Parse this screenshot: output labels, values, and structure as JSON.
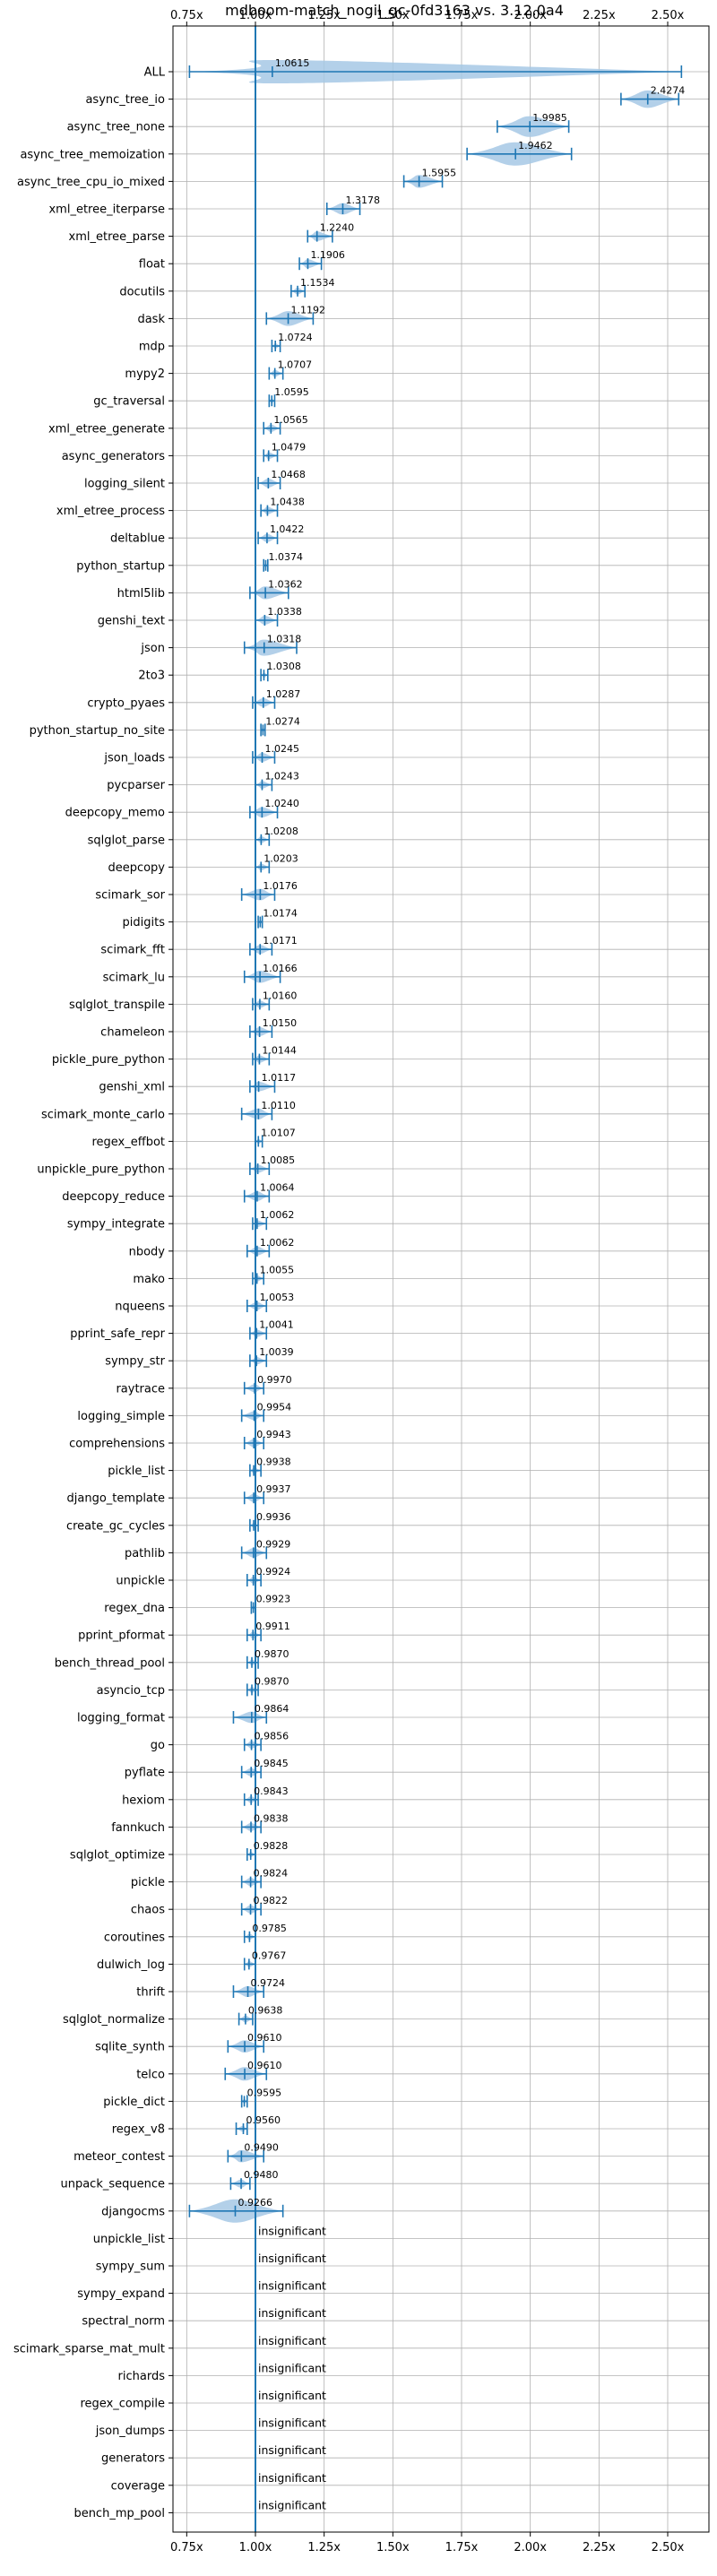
{
  "chart_data": {
    "type": "violin",
    "title": "mdboom-match_nogil_gc-0fd3163 vs. 3.12.0a4",
    "xlabel": "",
    "ylabel": "",
    "xlim": [
      0.7,
      2.65
    ],
    "xticks": [
      0.75,
      1.0,
      1.25,
      1.5,
      1.75,
      2.0,
      2.25,
      2.5
    ],
    "xtick_labels": [
      "0.75x",
      "1.00x",
      "1.25x",
      "1.50x",
      "1.75x",
      "2.00x",
      "2.25x",
      "2.50x"
    ],
    "xtick_positions": [
      "top",
      "bottom"
    ],
    "reference_line": 1.0,
    "grid": true,
    "colors": {
      "violin": "#a6c8e5",
      "line": "#1f77b4"
    },
    "benchmarks": [
      {
        "name": "ALL",
        "value": 1.0615,
        "label": "1.0615",
        "min": 0.76,
        "max": 2.55
      },
      {
        "name": "async_tree_io",
        "value": 2.4274,
        "label": "2.4274",
        "min": 2.33,
        "max": 2.54
      },
      {
        "name": "async_tree_none",
        "value": 1.9985,
        "label": "1.9985",
        "min": 1.88,
        "max": 2.14
      },
      {
        "name": "async_tree_memoization",
        "value": 1.9462,
        "label": "1.9462",
        "min": 1.77,
        "max": 2.15
      },
      {
        "name": "async_tree_cpu_io_mixed",
        "value": 1.5955,
        "label": "1.5955",
        "min": 1.54,
        "max": 1.68
      },
      {
        "name": "xml_etree_iterparse",
        "value": 1.3178,
        "label": "1.3178",
        "min": 1.26,
        "max": 1.38
      },
      {
        "name": "xml_etree_parse",
        "value": 1.224,
        "label": "1.2240",
        "min": 1.19,
        "max": 1.28
      },
      {
        "name": "float",
        "value": 1.1906,
        "label": "1.1906",
        "min": 1.16,
        "max": 1.24
      },
      {
        "name": "docutils",
        "value": 1.1534,
        "label": "1.1534",
        "min": 1.13,
        "max": 1.18
      },
      {
        "name": "dask",
        "value": 1.1192,
        "label": "1.1192",
        "min": 1.04,
        "max": 1.21
      },
      {
        "name": "mdp",
        "value": 1.0724,
        "label": "1.0724",
        "min": 1.06,
        "max": 1.09
      },
      {
        "name": "mypy2",
        "value": 1.0707,
        "label": "1.0707",
        "min": 1.05,
        "max": 1.1
      },
      {
        "name": "gc_traversal",
        "value": 1.0595,
        "label": "1.0595",
        "min": 1.05,
        "max": 1.07
      },
      {
        "name": "xml_etree_generate",
        "value": 1.0565,
        "label": "1.0565",
        "min": 1.03,
        "max": 1.09
      },
      {
        "name": "async_generators",
        "value": 1.0479,
        "label": "1.0479",
        "min": 1.03,
        "max": 1.08
      },
      {
        "name": "logging_silent",
        "value": 1.0468,
        "label": "1.0468",
        "min": 1.01,
        "max": 1.09
      },
      {
        "name": "xml_etree_process",
        "value": 1.0438,
        "label": "1.0438",
        "min": 1.02,
        "max": 1.08
      },
      {
        "name": "deltablue",
        "value": 1.0422,
        "label": "1.0422",
        "min": 1.01,
        "max": 1.08
      },
      {
        "name": "python_startup",
        "value": 1.0374,
        "label": "1.0374",
        "min": 1.03,
        "max": 1.045
      },
      {
        "name": "html5lib",
        "value": 1.0362,
        "label": "1.0362",
        "min": 0.98,
        "max": 1.12
      },
      {
        "name": "genshi_text",
        "value": 1.0338,
        "label": "1.0338",
        "min": 1.0,
        "max": 1.08
      },
      {
        "name": "json",
        "value": 1.0318,
        "label": "1.0318",
        "min": 0.96,
        "max": 1.15
      },
      {
        "name": "2to3",
        "value": 1.0308,
        "label": "1.0308",
        "min": 1.02,
        "max": 1.045
      },
      {
        "name": "crypto_pyaes",
        "value": 1.0287,
        "label": "1.0287",
        "min": 0.99,
        "max": 1.07
      },
      {
        "name": "python_startup_no_site",
        "value": 1.0274,
        "label": "1.0274",
        "min": 1.02,
        "max": 1.035
      },
      {
        "name": "json_loads",
        "value": 1.0245,
        "label": "1.0245",
        "min": 0.99,
        "max": 1.07
      },
      {
        "name": "pycparser",
        "value": 1.0243,
        "label": "1.0243",
        "min": 1.0,
        "max": 1.06
      },
      {
        "name": "deepcopy_memo",
        "value": 1.024,
        "label": "1.0240",
        "min": 0.98,
        "max": 1.08
      },
      {
        "name": "sqlglot_parse",
        "value": 1.0208,
        "label": "1.0208",
        "min": 1.0,
        "max": 1.05
      },
      {
        "name": "deepcopy",
        "value": 1.0203,
        "label": "1.0203",
        "min": 1.0,
        "max": 1.05
      },
      {
        "name": "scimark_sor",
        "value": 1.0176,
        "label": "1.0176",
        "min": 0.95,
        "max": 1.07
      },
      {
        "name": "pidigits",
        "value": 1.0174,
        "label": "1.0174",
        "min": 1.01,
        "max": 1.025
      },
      {
        "name": "scimark_fft",
        "value": 1.0171,
        "label": "1.0171",
        "min": 0.98,
        "max": 1.06
      },
      {
        "name": "scimark_lu",
        "value": 1.0166,
        "label": "1.0166",
        "min": 0.96,
        "max": 1.09
      },
      {
        "name": "sqlglot_transpile",
        "value": 1.016,
        "label": "1.0160",
        "min": 0.99,
        "max": 1.05
      },
      {
        "name": "chameleon",
        "value": 1.015,
        "label": "1.0150",
        "min": 0.98,
        "max": 1.06
      },
      {
        "name": "pickle_pure_python",
        "value": 1.0144,
        "label": "1.0144",
        "min": 0.99,
        "max": 1.05
      },
      {
        "name": "genshi_xml",
        "value": 1.0117,
        "label": "1.0117",
        "min": 0.98,
        "max": 1.07
      },
      {
        "name": "scimark_monte_carlo",
        "value": 1.011,
        "label": "1.0110",
        "min": 0.95,
        "max": 1.06
      },
      {
        "name": "regex_effbot",
        "value": 1.0107,
        "label": "1.0107",
        "min": 1.0,
        "max": 1.025
      },
      {
        "name": "unpickle_pure_python",
        "value": 1.0085,
        "label": "1.0085",
        "min": 0.98,
        "max": 1.05
      },
      {
        "name": "deepcopy_reduce",
        "value": 1.0064,
        "label": "1.0064",
        "min": 0.96,
        "max": 1.05
      },
      {
        "name": "sympy_integrate",
        "value": 1.0062,
        "label": "1.0062",
        "min": 0.99,
        "max": 1.04
      },
      {
        "name": "nbody",
        "value": 1.0062,
        "label": "1.0062",
        "min": 0.97,
        "max": 1.05
      },
      {
        "name": "mako",
        "value": 1.0055,
        "label": "1.0055",
        "min": 0.99,
        "max": 1.03
      },
      {
        "name": "nqueens",
        "value": 1.0053,
        "label": "1.0053",
        "min": 0.97,
        "max": 1.04
      },
      {
        "name": "pprint_safe_repr",
        "value": 1.0041,
        "label": "1.0041",
        "min": 0.98,
        "max": 1.04
      },
      {
        "name": "sympy_str",
        "value": 1.0039,
        "label": "1.0039",
        "min": 0.98,
        "max": 1.04
      },
      {
        "name": "raytrace",
        "value": 0.997,
        "label": "0.9970",
        "min": 0.96,
        "max": 1.03
      },
      {
        "name": "logging_simple",
        "value": 0.9954,
        "label": "0.9954",
        "min": 0.95,
        "max": 1.03
      },
      {
        "name": "comprehensions",
        "value": 0.9943,
        "label": "0.9943",
        "min": 0.96,
        "max": 1.03
      },
      {
        "name": "pickle_list",
        "value": 0.9938,
        "label": "0.9938",
        "min": 0.98,
        "max": 1.02
      },
      {
        "name": "django_template",
        "value": 0.9937,
        "label": "0.9937",
        "min": 0.96,
        "max": 1.03
      },
      {
        "name": "create_gc_cycles",
        "value": 0.9936,
        "label": "0.9936",
        "min": 0.98,
        "max": 1.01
      },
      {
        "name": "pathlib",
        "value": 0.9929,
        "label": "0.9929",
        "min": 0.95,
        "max": 1.04
      },
      {
        "name": "unpickle",
        "value": 0.9924,
        "label": "0.9924",
        "min": 0.97,
        "max": 1.02
      },
      {
        "name": "regex_dna",
        "value": 0.9923,
        "label": "0.9923",
        "min": 0.985,
        "max": 1.0
      },
      {
        "name": "pprint_pformat",
        "value": 0.9911,
        "label": "0.9911",
        "min": 0.97,
        "max": 1.02
      },
      {
        "name": "bench_thread_pool",
        "value": 0.987,
        "label": "0.9870",
        "min": 0.97,
        "max": 1.01
      },
      {
        "name": "asyncio_tcp",
        "value": 0.987,
        "label": "0.9870",
        "min": 0.97,
        "max": 1.01
      },
      {
        "name": "logging_format",
        "value": 0.9864,
        "label": "0.9864",
        "min": 0.92,
        "max": 1.04
      },
      {
        "name": "go",
        "value": 0.9856,
        "label": "0.9856",
        "min": 0.96,
        "max": 1.02
      },
      {
        "name": "pyflate",
        "value": 0.9845,
        "label": "0.9845",
        "min": 0.95,
        "max": 1.02
      },
      {
        "name": "hexiom",
        "value": 0.9843,
        "label": "0.9843",
        "min": 0.96,
        "max": 1.01
      },
      {
        "name": "fannkuch",
        "value": 0.9838,
        "label": "0.9838",
        "min": 0.95,
        "max": 1.02
      },
      {
        "name": "sqlglot_optimize",
        "value": 0.9828,
        "label": "0.9828",
        "min": 0.97,
        "max": 1.0
      },
      {
        "name": "pickle",
        "value": 0.9824,
        "label": "0.9824",
        "min": 0.95,
        "max": 1.02
      },
      {
        "name": "chaos",
        "value": 0.9822,
        "label": "0.9822",
        "min": 0.95,
        "max": 1.02
      },
      {
        "name": "coroutines",
        "value": 0.9785,
        "label": "0.9785",
        "min": 0.96,
        "max": 1.0
      },
      {
        "name": "dulwich_log",
        "value": 0.9767,
        "label": "0.9767",
        "min": 0.96,
        "max": 1.0
      },
      {
        "name": "thrift",
        "value": 0.9724,
        "label": "0.9724",
        "min": 0.92,
        "max": 1.03
      },
      {
        "name": "sqlglot_normalize",
        "value": 0.9638,
        "label": "0.9638",
        "min": 0.94,
        "max": 0.99
      },
      {
        "name": "sqlite_synth",
        "value": 0.961,
        "label": "0.9610",
        "min": 0.9,
        "max": 1.03
      },
      {
        "name": "telco",
        "value": 0.961,
        "label": "0.9610",
        "min": 0.89,
        "max": 1.04
      },
      {
        "name": "pickle_dict",
        "value": 0.9595,
        "label": "0.9595",
        "min": 0.95,
        "max": 0.97
      },
      {
        "name": "regex_v8",
        "value": 0.956,
        "label": "0.9560",
        "min": 0.93,
        "max": 0.97
      },
      {
        "name": "meteor_contest",
        "value": 0.949,
        "label": "0.9490",
        "min": 0.9,
        "max": 1.03
      },
      {
        "name": "unpack_sequence",
        "value": 0.948,
        "label": "0.9480",
        "min": 0.91,
        "max": 0.98
      },
      {
        "name": "djangocms",
        "value": 0.9266,
        "label": "0.9266",
        "min": 0.76,
        "max": 1.1
      },
      {
        "name": "unpickle_list",
        "value": null,
        "label": "insignificant"
      },
      {
        "name": "sympy_sum",
        "value": null,
        "label": "insignificant"
      },
      {
        "name": "sympy_expand",
        "value": null,
        "label": "insignificant"
      },
      {
        "name": "spectral_norm",
        "value": null,
        "label": "insignificant"
      },
      {
        "name": "scimark_sparse_mat_mult",
        "value": null,
        "label": "insignificant"
      },
      {
        "name": "richards",
        "value": null,
        "label": "insignificant"
      },
      {
        "name": "regex_compile",
        "value": null,
        "label": "insignificant"
      },
      {
        "name": "json_dumps",
        "value": null,
        "label": "insignificant"
      },
      {
        "name": "generators",
        "value": null,
        "label": "insignificant"
      },
      {
        "name": "coverage",
        "value": null,
        "label": "insignificant"
      },
      {
        "name": "bench_mp_pool",
        "value": null,
        "label": "insignificant"
      }
    ]
  }
}
